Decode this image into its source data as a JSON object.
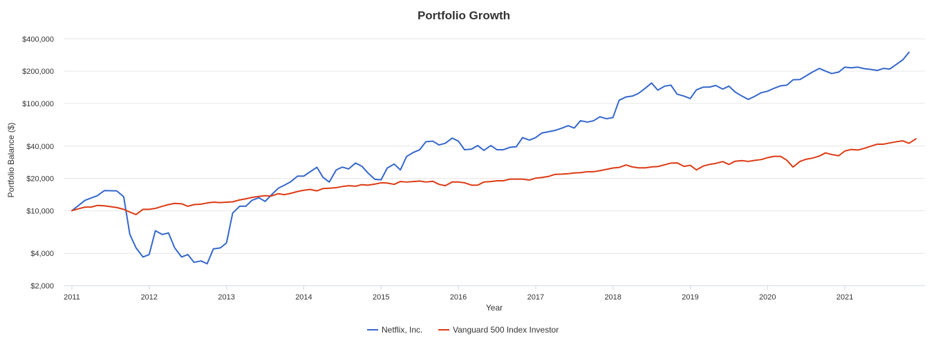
{
  "chart_data": {
    "type": "line",
    "title": "Portfolio Growth",
    "xlabel": "Year",
    "ylabel": "Portfolio Balance ($)",
    "y_scale": "log",
    "ylim": [
      2000,
      480000
    ],
    "xlim": [
      2011.0,
      2021.92
    ],
    "y_ticks": [
      {
        "value": 2000,
        "label": "$2,000"
      },
      {
        "value": 4000,
        "label": "$4,000"
      },
      {
        "value": 10000,
        "label": "$10,000"
      },
      {
        "value": 20000,
        "label": "$20,000"
      },
      {
        "value": 40000,
        "label": "$40,000"
      },
      {
        "value": 100000,
        "label": "$100,000"
      },
      {
        "value": 200000,
        "label": "$200,000"
      },
      {
        "value": 400000,
        "label": "$400,000"
      }
    ],
    "x_ticks": [
      {
        "value": 2011,
        "label": "2011"
      },
      {
        "value": 2012,
        "label": "2012"
      },
      {
        "value": 2013,
        "label": "2013"
      },
      {
        "value": 2014,
        "label": "2014"
      },
      {
        "value": 2015,
        "label": "2015"
      },
      {
        "value": 2016,
        "label": "2016"
      },
      {
        "value": 2017,
        "label": "2017"
      },
      {
        "value": 2018,
        "label": "2018"
      },
      {
        "value": 2019,
        "label": "2019"
      },
      {
        "value": 2020,
        "label": "2020"
      },
      {
        "value": 2021,
        "label": "2021"
      }
    ],
    "grid": true,
    "legend_position": "bottom-center",
    "series": [
      {
        "name": "Netflix, Inc.",
        "color": "#3366cc",
        "points": [
          [
            2011.0,
            10000
          ],
          [
            2011.17,
            12500
          ],
          [
            2011.33,
            13800
          ],
          [
            2011.42,
            15400
          ],
          [
            2011.58,
            15300
          ],
          [
            2011.67,
            13500
          ],
          [
            2011.75,
            6000
          ],
          [
            2011.83,
            4500
          ],
          [
            2011.92,
            3700
          ],
          [
            2012.0,
            3900
          ],
          [
            2012.08,
            6500
          ],
          [
            2012.17,
            6000
          ],
          [
            2012.25,
            6200
          ],
          [
            2012.33,
            4500
          ],
          [
            2012.42,
            3700
          ],
          [
            2012.5,
            3900
          ],
          [
            2012.58,
            3300
          ],
          [
            2012.67,
            3400
          ],
          [
            2012.75,
            3200
          ],
          [
            2012.83,
            4400
          ],
          [
            2012.92,
            4500
          ],
          [
            2013.0,
            5000
          ],
          [
            2013.08,
            9500
          ],
          [
            2013.17,
            11000
          ],
          [
            2013.25,
            11000
          ],
          [
            2013.33,
            12500
          ],
          [
            2013.42,
            13200
          ],
          [
            2013.5,
            12200
          ],
          [
            2013.58,
            14000
          ],
          [
            2013.67,
            16200
          ],
          [
            2013.75,
            17300
          ],
          [
            2013.83,
            18600
          ],
          [
            2013.92,
            21000
          ],
          [
            2014.0,
            21000
          ],
          [
            2014.08,
            23000
          ],
          [
            2014.17,
            25400
          ],
          [
            2014.25,
            20400
          ],
          [
            2014.33,
            18500
          ],
          [
            2014.42,
            24000
          ],
          [
            2014.5,
            25500
          ],
          [
            2014.58,
            24500
          ],
          [
            2014.67,
            27800
          ],
          [
            2014.75,
            26000
          ],
          [
            2014.83,
            22500
          ],
          [
            2014.92,
            19600
          ],
          [
            2015.0,
            19400
          ],
          [
            2015.08,
            25000
          ],
          [
            2015.17,
            27200
          ],
          [
            2015.25,
            24000
          ],
          [
            2015.33,
            32000
          ],
          [
            2015.42,
            35000
          ],
          [
            2015.5,
            37000
          ],
          [
            2015.58,
            44000
          ],
          [
            2015.67,
            44500
          ],
          [
            2015.75,
            41000
          ],
          [
            2015.83,
            42500
          ],
          [
            2015.92,
            47500
          ],
          [
            2016.0,
            44500
          ],
          [
            2016.08,
            37000
          ],
          [
            2016.17,
            37500
          ],
          [
            2016.25,
            40500
          ],
          [
            2016.33,
            36500
          ],
          [
            2016.42,
            40500
          ],
          [
            2016.5,
            37000
          ],
          [
            2016.58,
            37000
          ],
          [
            2016.67,
            39000
          ],
          [
            2016.75,
            39500
          ],
          [
            2016.83,
            48000
          ],
          [
            2016.92,
            45500
          ],
          [
            2017.0,
            48000
          ],
          [
            2017.08,
            53000
          ],
          [
            2017.17,
            54500
          ],
          [
            2017.25,
            56000
          ],
          [
            2017.33,
            58500
          ],
          [
            2017.42,
            62000
          ],
          [
            2017.5,
            59000
          ],
          [
            2017.58,
            69000
          ],
          [
            2017.67,
            67000
          ],
          [
            2017.75,
            69000
          ],
          [
            2017.83,
            75000
          ],
          [
            2017.92,
            72000
          ],
          [
            2018.0,
            74000
          ],
          [
            2018.08,
            107000
          ],
          [
            2018.17,
            115000
          ],
          [
            2018.25,
            117000
          ],
          [
            2018.33,
            124000
          ],
          [
            2018.42,
            139000
          ],
          [
            2018.5,
            155000
          ],
          [
            2018.58,
            133000
          ],
          [
            2018.67,
            145000
          ],
          [
            2018.75,
            148000
          ],
          [
            2018.83,
            122000
          ],
          [
            2018.92,
            117000
          ],
          [
            2019.0,
            111000
          ],
          [
            2019.08,
            134000
          ],
          [
            2019.17,
            142000
          ],
          [
            2019.25,
            142000
          ],
          [
            2019.33,
            147000
          ],
          [
            2019.42,
            136000
          ],
          [
            2019.5,
            145000
          ],
          [
            2019.58,
            128000
          ],
          [
            2019.67,
            117000
          ],
          [
            2019.75,
            109000
          ],
          [
            2019.83,
            116000
          ],
          [
            2019.92,
            126000
          ],
          [
            2020.0,
            130000
          ],
          [
            2020.08,
            138000
          ],
          [
            2020.17,
            146000
          ],
          [
            2020.25,
            148000
          ],
          [
            2020.33,
            166000
          ],
          [
            2020.42,
            167000
          ],
          [
            2020.5,
            181000
          ],
          [
            2020.58,
            196000
          ],
          [
            2020.67,
            212000
          ],
          [
            2020.75,
            200000
          ],
          [
            2020.83,
            190000
          ],
          [
            2020.92,
            196000
          ],
          [
            2021.0,
            218000
          ],
          [
            2021.08,
            215000
          ],
          [
            2021.17,
            218000
          ],
          [
            2021.25,
            211000
          ],
          [
            2021.33,
            208000
          ],
          [
            2021.42,
            203000
          ],
          [
            2021.5,
            212000
          ],
          [
            2021.58,
            209000
          ],
          [
            2021.67,
            232000
          ],
          [
            2021.75,
            255000
          ],
          [
            2021.83,
            300000
          ]
        ]
      },
      {
        "name": "Vanguard 500 Index Investor",
        "color": "#dc3912",
        "points": [
          [
            2011.0,
            10000
          ],
          [
            2011.08,
            10400
          ],
          [
            2011.17,
            10800
          ],
          [
            2011.25,
            10800
          ],
          [
            2011.33,
            11200
          ],
          [
            2011.42,
            11100
          ],
          [
            2011.5,
            10900
          ],
          [
            2011.58,
            10700
          ],
          [
            2011.67,
            10300
          ],
          [
            2011.75,
            9700
          ],
          [
            2011.83,
            9200
          ],
          [
            2011.92,
            10300
          ],
          [
            2012.0,
            10300
          ],
          [
            2012.08,
            10500
          ],
          [
            2012.17,
            11000
          ],
          [
            2012.25,
            11400
          ],
          [
            2012.33,
            11700
          ],
          [
            2012.42,
            11600
          ],
          [
            2012.5,
            11000
          ],
          [
            2012.58,
            11400
          ],
          [
            2012.67,
            11500
          ],
          [
            2012.75,
            11800
          ],
          [
            2012.83,
            12000
          ],
          [
            2012.92,
            11900
          ],
          [
            2013.0,
            12000
          ],
          [
            2013.08,
            12100
          ],
          [
            2013.17,
            12600
          ],
          [
            2013.25,
            12900
          ],
          [
            2013.33,
            13300
          ],
          [
            2013.42,
            13600
          ],
          [
            2013.5,
            13800
          ],
          [
            2013.58,
            13700
          ],
          [
            2013.67,
            14400
          ],
          [
            2013.75,
            14100
          ],
          [
            2013.83,
            14500
          ],
          [
            2013.92,
            15100
          ],
          [
            2014.0,
            15500
          ],
          [
            2014.08,
            15800
          ],
          [
            2014.17,
            15300
          ],
          [
            2014.25,
            16100
          ],
          [
            2014.33,
            16200
          ],
          [
            2014.42,
            16400
          ],
          [
            2014.5,
            16800
          ],
          [
            2014.58,
            17100
          ],
          [
            2014.67,
            16900
          ],
          [
            2014.75,
            17500
          ],
          [
            2014.83,
            17300
          ],
          [
            2014.92,
            17700
          ],
          [
            2015.0,
            18200
          ],
          [
            2015.08,
            18100
          ],
          [
            2015.17,
            17600
          ],
          [
            2015.25,
            18700
          ],
          [
            2015.33,
            18500
          ],
          [
            2015.42,
            18700
          ],
          [
            2015.5,
            18900
          ],
          [
            2015.58,
            18500
          ],
          [
            2015.67,
            18800
          ],
          [
            2015.75,
            17600
          ],
          [
            2015.83,
            17100
          ],
          [
            2015.92,
            18500
          ],
          [
            2016.0,
            18500
          ],
          [
            2016.08,
            18200
          ],
          [
            2016.17,
            17300
          ],
          [
            2016.25,
            17300
          ],
          [
            2016.33,
            18500
          ],
          [
            2016.42,
            18700
          ],
          [
            2016.5,
            19000
          ],
          [
            2016.58,
            19000
          ],
          [
            2016.67,
            19700
          ],
          [
            2016.75,
            19700
          ],
          [
            2016.83,
            19700
          ],
          [
            2016.92,
            19300
          ],
          [
            2017.0,
            20100
          ],
          [
            2017.08,
            20400
          ],
          [
            2017.17,
            20900
          ],
          [
            2017.25,
            21800
          ],
          [
            2017.33,
            21900
          ],
          [
            2017.42,
            22100
          ],
          [
            2017.5,
            22500
          ],
          [
            2017.58,
            22600
          ],
          [
            2017.67,
            23100
          ],
          [
            2017.75,
            23100
          ],
          [
            2017.83,
            23600
          ],
          [
            2017.92,
            24300
          ],
          [
            2018.0,
            25000
          ],
          [
            2018.08,
            25300
          ],
          [
            2018.17,
            26700
          ],
          [
            2018.25,
            25600
          ],
          [
            2018.33,
            25100
          ],
          [
            2018.42,
            25100
          ],
          [
            2018.5,
            25600
          ],
          [
            2018.58,
            25800
          ],
          [
            2018.67,
            26800
          ],
          [
            2018.75,
            27800
          ],
          [
            2018.83,
            27900
          ],
          [
            2018.92,
            25900
          ],
          [
            2019.0,
            26500
          ],
          [
            2019.08,
            24000
          ],
          [
            2019.17,
            26100
          ],
          [
            2019.25,
            27000
          ],
          [
            2019.33,
            27600
          ],
          [
            2019.42,
            28700
          ],
          [
            2019.5,
            27000
          ],
          [
            2019.58,
            28900
          ],
          [
            2019.67,
            29300
          ],
          [
            2019.75,
            28800
          ],
          [
            2019.83,
            29400
          ],
          [
            2019.92,
            30000
          ],
          [
            2020.0,
            31200
          ],
          [
            2020.08,
            32100
          ],
          [
            2020.17,
            32100
          ],
          [
            2020.25,
            29500
          ],
          [
            2020.33,
            25500
          ],
          [
            2020.42,
            28800
          ],
          [
            2020.5,
            30200
          ],
          [
            2020.58,
            30900
          ],
          [
            2020.67,
            32300
          ],
          [
            2020.75,
            34600
          ],
          [
            2020.83,
            33400
          ],
          [
            2020.92,
            32500
          ],
          [
            2021.0,
            36000
          ],
          [
            2021.08,
            37200
          ],
          [
            2021.17,
            36800
          ],
          [
            2021.25,
            38100
          ],
          [
            2021.33,
            39800
          ],
          [
            2021.42,
            41700
          ],
          [
            2021.5,
            41700
          ],
          [
            2021.58,
            42800
          ],
          [
            2021.67,
            44000
          ],
          [
            2021.75,
            44800
          ],
          [
            2021.83,
            42500
          ],
          [
            2021.92,
            46800
          ]
        ]
      }
    ]
  }
}
